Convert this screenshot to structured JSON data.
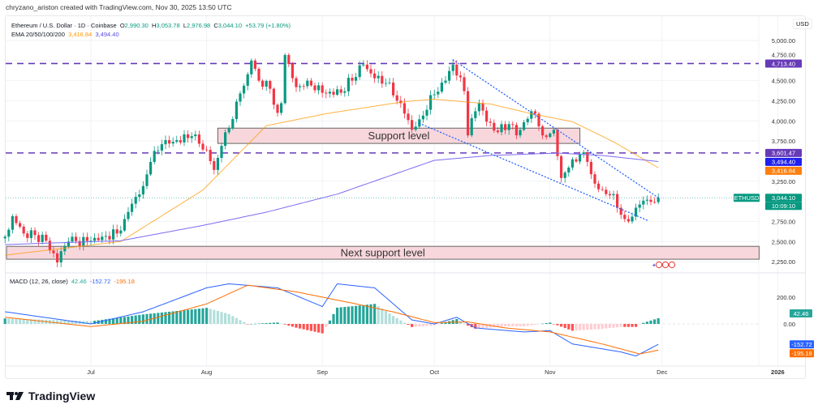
{
  "attribution": "chryzano_ariston created with TradingView.com, Nov 30, 2025 13:50 UTC",
  "symbol": {
    "title": "Ethereum / U.S. Dollar · 1D · Coinbase",
    "open_label": "O",
    "open": "2,990.30",
    "high_label": "H",
    "high": "3,053.78",
    "low_label": "L",
    "low": "2,976.98",
    "close_label": "C",
    "close": "3,044.10",
    "change": "+53.79 (+1.80%)"
  },
  "ema": {
    "label": "EMA 20/50/100/200",
    "value1": "3,416.84",
    "value2": "3,494.40"
  },
  "macd": {
    "label": "MACD (12, 26, close)",
    "hist": "42.46",
    "macd": "-152.72",
    "signal": "-195.18"
  },
  "currency": "USD",
  "colors": {
    "up": "#089981",
    "down": "#f23645",
    "ema_orange": "#ff9800",
    "ema_purple": "#7e6cf0",
    "level": "#673ab7",
    "trend": "#2962ff",
    "zone": "#f8d7dc"
  },
  "price_axis": [
    "5,000.00",
    "4,750.00",
    "4,500.00",
    "4,250.00",
    "4,000.00",
    "3,750.00",
    "3,250.00",
    "2,750.00",
    "2,500.00",
    "2,250.00"
  ],
  "price_axis_values": [
    5000,
    4750,
    4500,
    4250,
    4000,
    3750,
    3250,
    2750,
    2500,
    2250
  ],
  "price_tags": {
    "resistance": "4,713.40",
    "level2": "3,601.47",
    "ema_purple": "3,494.40",
    "ema_orange": "3,416.84",
    "symbol_tag": "ETHUSD",
    "last": "3,044.10",
    "countdown": "10:09:10"
  },
  "macd_axis": [
    "200.00",
    "0.00"
  ],
  "macd_tags": {
    "hist": "42.46",
    "macd": "-152.72",
    "signal": "-195.18"
  },
  "time_axis": [
    {
      "label": "Jul",
      "date": "2025-07-01"
    },
    {
      "label": "Aug",
      "date": "2025-08-01"
    },
    {
      "label": "Sep",
      "date": "2025-09-01"
    },
    {
      "label": "Oct",
      "date": "2025-10-01"
    },
    {
      "label": "Nov",
      "date": "2025-11-01"
    },
    {
      "label": "Dec",
      "date": "2025-12-01"
    },
    {
      "label": "2026",
      "date": "2026-01-01"
    }
  ],
  "annotations": {
    "support": {
      "label": "Support level",
      "from": "2025-08-04",
      "to": "2025-11-09",
      "top": 3910,
      "bottom": 3720
    },
    "next_support": {
      "label": "Next support level",
      "from": "2025-06-07",
      "to": "2025-12-27",
      "top": 2440,
      "bottom": 2280
    },
    "levels": [
      4713.4,
      3601.47
    ],
    "trend_upper": [
      {
        "date": "2025-10-06",
        "price": 4760
      },
      {
        "date": "2025-11-30",
        "price": 3045
      }
    ],
    "trend_lower": [
      {
        "date": "2025-09-27",
        "price": 3970
      },
      {
        "date": "2025-11-27",
        "price": 2765
      }
    ]
  },
  "chart_data": {
    "type": "candlestick",
    "closes": [
      [
        "2025-06-08",
        2560
      ],
      [
        "2025-06-10",
        2815
      ],
      [
        "2025-06-13",
        2600
      ],
      [
        "2025-06-16",
        2580
      ],
      [
        "2025-06-19",
        2510
      ],
      [
        "2025-06-22",
        2240
      ],
      [
        "2025-06-23",
        2380
      ],
      [
        "2025-06-25",
        2500
      ],
      [
        "2025-07-01",
        2510
      ],
      [
        "2025-07-04",
        2560
      ],
      [
        "2025-07-08",
        2600
      ],
      [
        "2025-07-10",
        2780
      ],
      [
        "2025-07-12",
        2970
      ],
      [
        "2025-07-15",
        3190
      ],
      [
        "2025-07-17",
        3490
      ],
      [
        "2025-07-20",
        3710
      ],
      [
        "2025-07-23",
        3740
      ],
      [
        "2025-07-28",
        3810
      ],
      [
        "2025-08-01",
        3640
      ],
      [
        "2025-08-03",
        3390
      ],
      [
        "2025-08-05",
        3690
      ],
      [
        "2025-08-07",
        3910
      ],
      [
        "2025-08-09",
        4240
      ],
      [
        "2025-08-12",
        4580
      ],
      [
        "2025-08-13",
        4750
      ],
      [
        "2025-08-15",
        4500
      ],
      [
        "2025-08-18",
        4400
      ],
      [
        "2025-08-20",
        4100
      ],
      [
        "2025-08-21",
        4220
      ],
      [
        "2025-08-22",
        4820
      ],
      [
        "2025-08-25",
        4420
      ],
      [
        "2025-08-28",
        4500
      ],
      [
        "2025-09-01",
        4350
      ],
      [
        "2025-09-06",
        4350
      ],
      [
        "2025-09-12",
        4700
      ],
      [
        "2025-09-15",
        4530
      ],
      [
        "2025-09-18",
        4470
      ],
      [
        "2025-09-22",
        4220
      ],
      [
        "2025-09-25",
        3890
      ],
      [
        "2025-09-27",
        4020
      ],
      [
        "2025-10-01",
        4330
      ],
      [
        "2025-10-04",
        4500
      ],
      [
        "2025-10-06",
        4700
      ],
      [
        "2025-10-09",
        4370
      ],
      [
        "2025-10-10",
        3820
      ],
      [
        "2025-10-12",
        4120
      ],
      [
        "2025-10-13",
        4220
      ],
      [
        "2025-10-15",
        3990
      ],
      [
        "2025-10-18",
        3860
      ],
      [
        "2025-10-21",
        3960
      ],
      [
        "2025-10-23",
        3820
      ],
      [
        "2025-10-27",
        4120
      ],
      [
        "2025-10-28",
        4090
      ],
      [
        "2025-10-30",
        3820
      ],
      [
        "2025-11-02",
        3890
      ],
      [
        "2025-11-04",
        3290
      ],
      [
        "2025-11-06",
        3420
      ],
      [
        "2025-11-09",
        3590
      ],
      [
        "2025-11-11",
        3490
      ],
      [
        "2025-11-13",
        3220
      ],
      [
        "2025-11-16",
        3090
      ],
      [
        "2025-11-18",
        3090
      ],
      [
        "2025-11-19",
        2920
      ],
      [
        "2025-11-21",
        2780
      ],
      [
        "2025-11-23",
        2810
      ],
      [
        "2025-11-25",
        2960
      ],
      [
        "2025-11-27",
        3020
      ],
      [
        "2025-11-29",
        2990.3
      ],
      [
        "2025-11-30",
        3044.1
      ]
    ],
    "ema_orange": [
      [
        "2025-06-08",
        2330
      ],
      [
        "2025-07-09",
        2500
      ],
      [
        "2025-07-31",
        3140
      ],
      [
        "2025-08-17",
        3940
      ],
      [
        "2025-09-02",
        4090
      ],
      [
        "2025-09-23",
        4240
      ],
      [
        "2025-10-01",
        4270
      ],
      [
        "2025-10-16",
        4210
      ],
      [
        "2025-10-27",
        4090
      ],
      [
        "2025-11-07",
        3990
      ],
      [
        "2025-11-18",
        3740
      ],
      [
        "2025-11-30",
        3416.84
      ]
    ],
    "ema_purple": [
      [
        "2025-06-08",
        2462
      ],
      [
        "2025-07-09",
        2510
      ],
      [
        "2025-07-31",
        2700
      ],
      [
        "2025-08-17",
        2865
      ],
      [
        "2025-09-05",
        3090
      ],
      [
        "2025-10-01",
        3510
      ],
      [
        "2025-10-16",
        3570
      ],
      [
        "2025-11-03",
        3600
      ],
      [
        "2025-11-15",
        3570
      ],
      [
        "2025-11-30",
        3494.4
      ]
    ],
    "macd_line": [
      [
        "2025-06-08",
        91
      ],
      [
        "2025-07-01",
        0
      ],
      [
        "2025-07-15",
        91
      ],
      [
        "2025-08-01",
        270
      ],
      [
        "2025-08-07",
        300
      ],
      [
        "2025-08-20",
        270
      ],
      [
        "2025-09-01",
        130
      ],
      [
        "2025-09-05",
        300
      ],
      [
        "2025-09-15",
        270
      ],
      [
        "2025-09-25",
        30
      ],
      [
        "2025-10-01",
        0
      ],
      [
        "2025-10-07",
        50
      ],
      [
        "2025-10-12",
        -30
      ],
      [
        "2025-10-25",
        -60
      ],
      [
        "2025-11-01",
        -50
      ],
      [
        "2025-11-07",
        -150
      ],
      [
        "2025-11-20",
        -210
      ],
      [
        "2025-11-24",
        -240
      ],
      [
        "2025-11-30",
        -152.72
      ]
    ],
    "signal_line": [
      [
        "2025-06-08",
        50
      ],
      [
        "2025-07-01",
        -20
      ],
      [
        "2025-07-15",
        20
      ],
      [
        "2025-08-01",
        150
      ],
      [
        "2025-08-12",
        290
      ],
      [
        "2025-08-25",
        240
      ],
      [
        "2025-09-10",
        150
      ],
      [
        "2025-09-20",
        90
      ],
      [
        "2025-10-01",
        10
      ],
      [
        "2025-10-10",
        15
      ],
      [
        "2025-10-20",
        -30
      ],
      [
        "2025-11-01",
        -60
      ],
      [
        "2025-11-15",
        -150
      ],
      [
        "2025-11-25",
        -225
      ],
      [
        "2025-11-30",
        -195.18
      ]
    ],
    "price_range": [
      2150,
      5100
    ],
    "grid": true
  },
  "logo_text": "TradingView"
}
